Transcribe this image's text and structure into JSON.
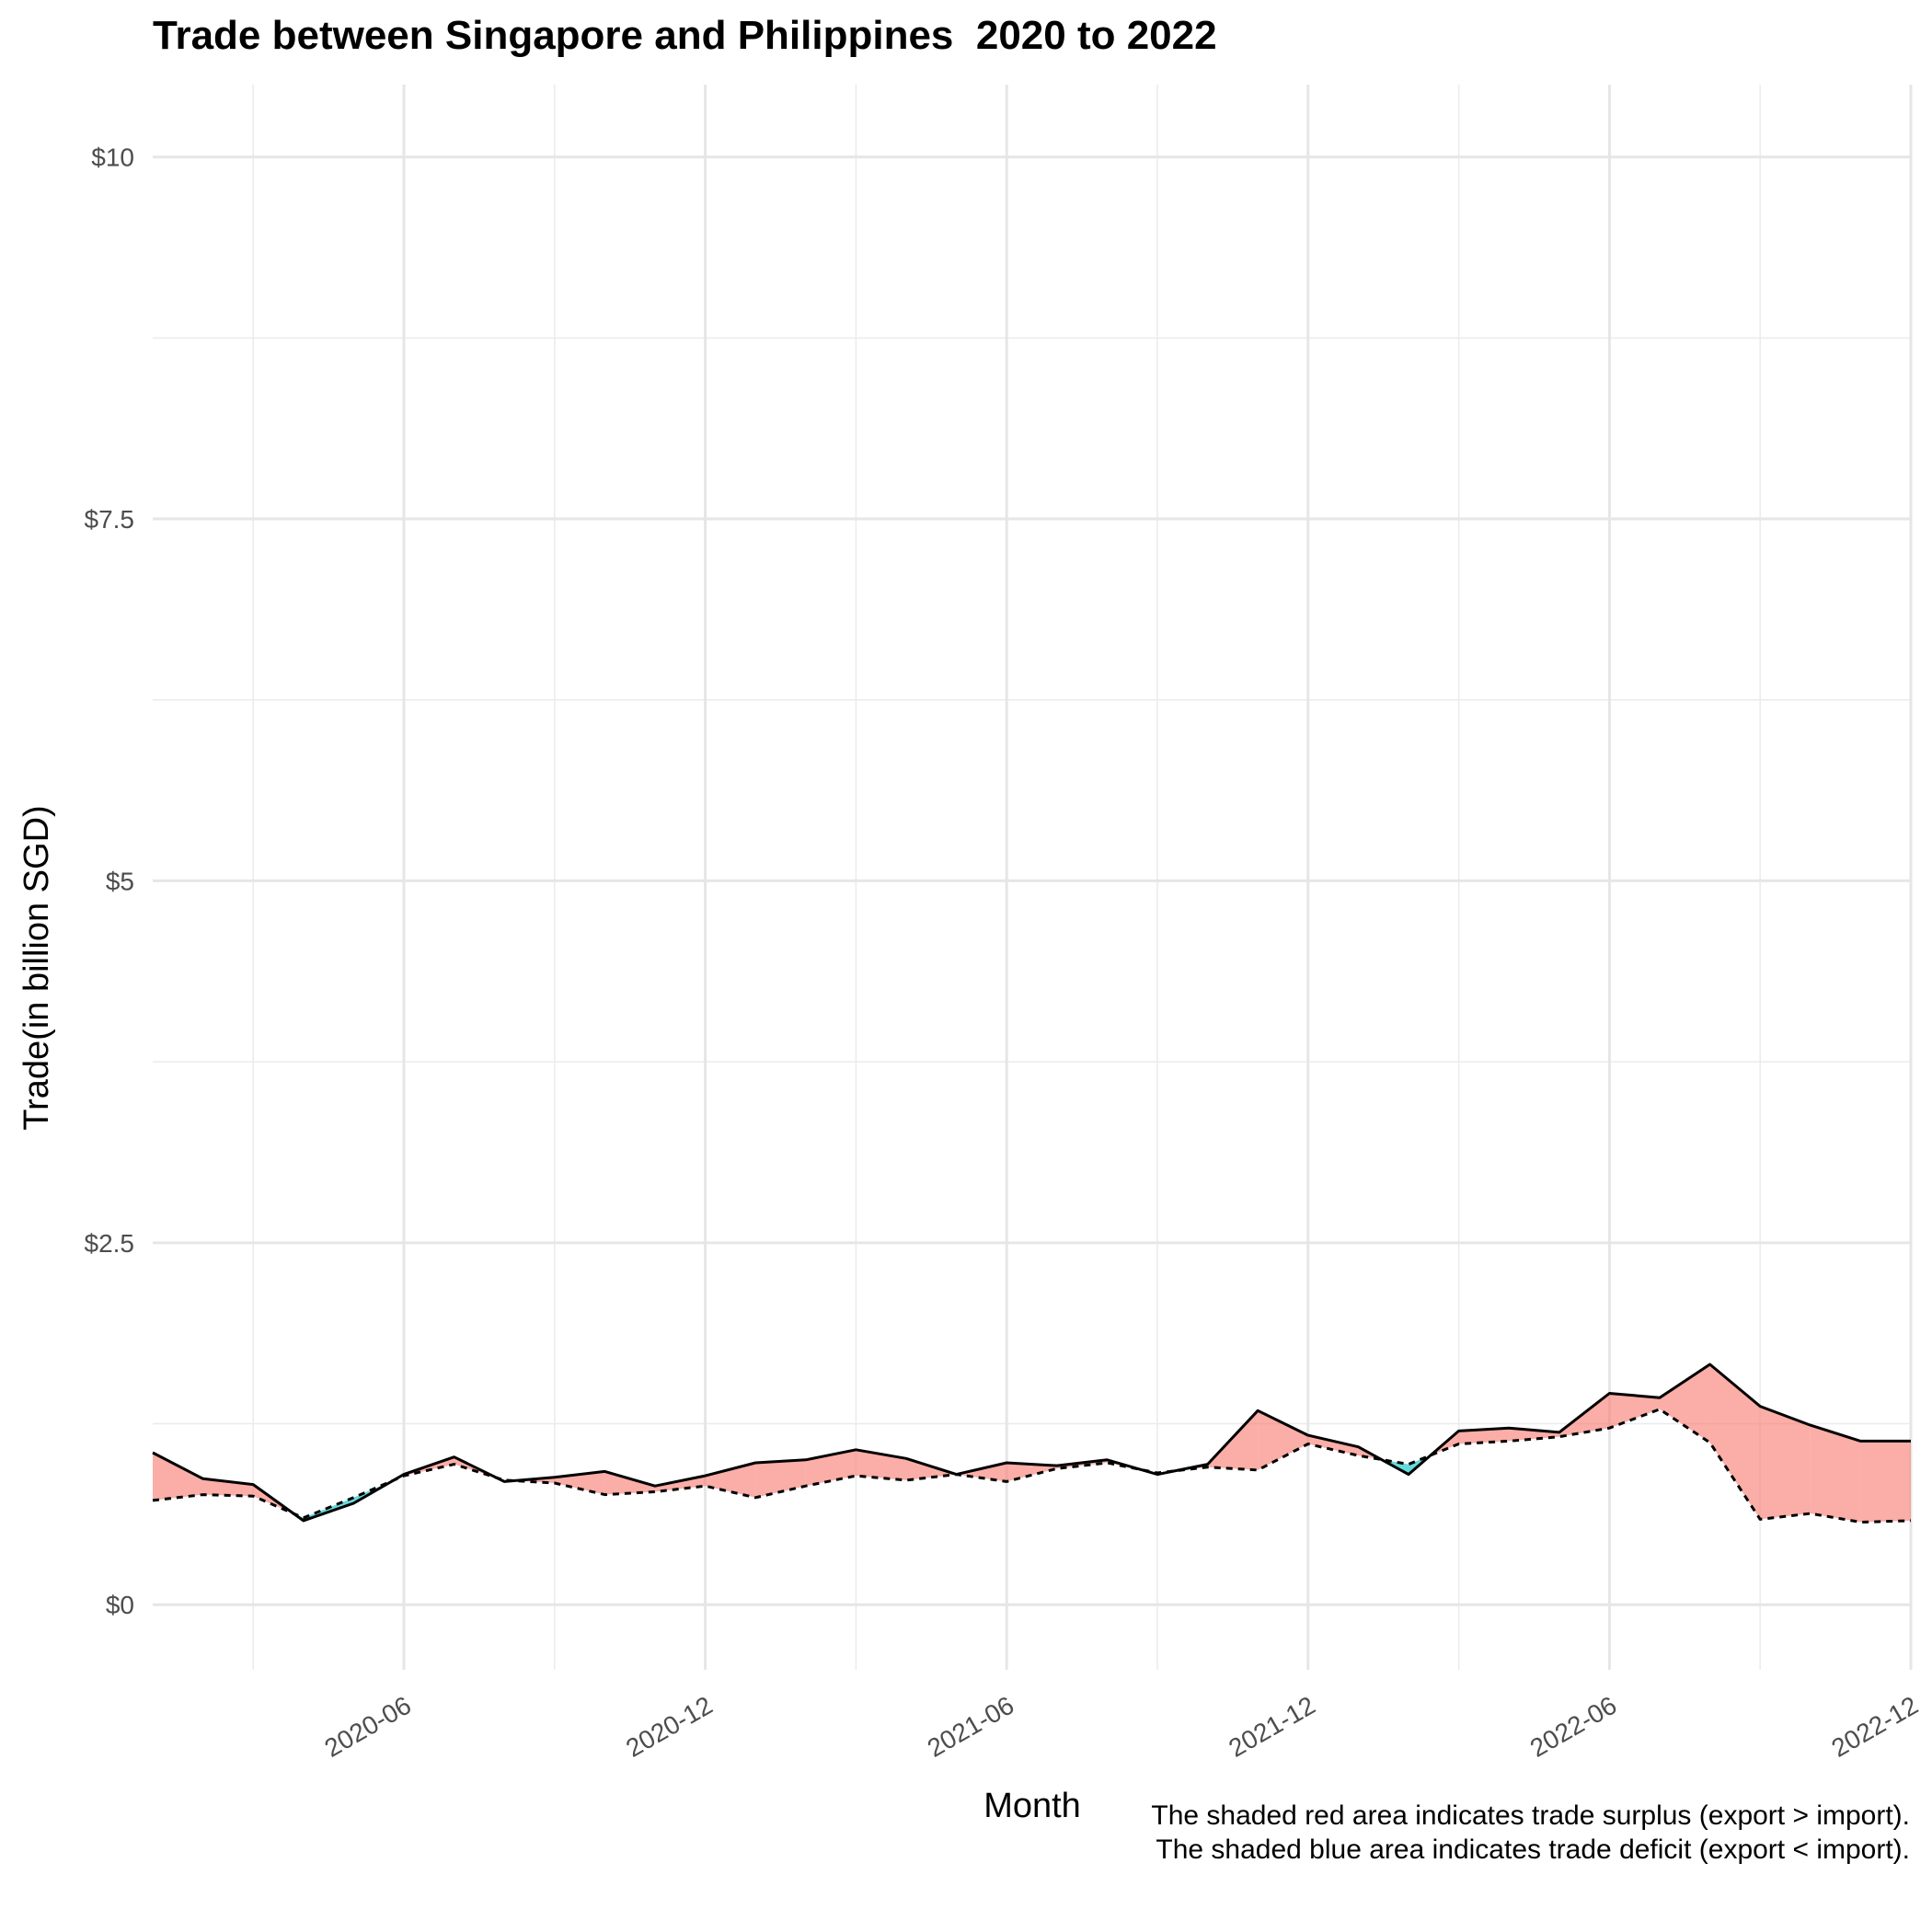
{
  "chart_data": {
    "type": "area",
    "title": "Trade between Singapore and Philippines  2020 to 2022",
    "xlabel": "Month",
    "ylabel": "Trade(in billion SGD)",
    "ylim": [
      -0.45,
      10.5
    ],
    "yticks": [
      0,
      2.5,
      5,
      7.5,
      10
    ],
    "ytick_labels": [
      "$0",
      "$2.5",
      "$5",
      "$7.5",
      "$10"
    ],
    "xticks": [
      "2020-06",
      "2020-12",
      "2021-06",
      "2021-12",
      "2022-06",
      "2022-12"
    ],
    "grid": true,
    "x": [
      "2020-01",
      "2020-02",
      "2020-03",
      "2020-04",
      "2020-05",
      "2020-06",
      "2020-07",
      "2020-08",
      "2020-09",
      "2020-10",
      "2020-11",
      "2020-12",
      "2021-01",
      "2021-02",
      "2021-03",
      "2021-04",
      "2021-05",
      "2021-06",
      "2021-07",
      "2021-08",
      "2021-09",
      "2021-10",
      "2021-11",
      "2021-12",
      "2022-01",
      "2022-02",
      "2022-03",
      "2022-04",
      "2022-05",
      "2022-06",
      "2022-07",
      "2022-08",
      "2022-09",
      "2022-10",
      "2022-11",
      "2022-12"
    ],
    "series": [
      {
        "line_style": "solid",
        "color": "#000000",
        "values": [
          1.05,
          0.87,
          0.83,
          0.58,
          0.7,
          0.9,
          1.02,
          0.85,
          0.88,
          0.92,
          0.82,
          0.89,
          0.98,
          1.0,
          1.07,
          1.01,
          0.9,
          0.98,
          0.96,
          1.0,
          0.9,
          0.97,
          1.34,
          1.17,
          1.09,
          0.9,
          1.2,
          1.22,
          1.19,
          1.46,
          1.43,
          1.66,
          1.37,
          1.24,
          1.13,
          1.13
        ]
      },
      {
        "line_style": "dotted",
        "color": "#000000",
        "values": [
          0.72,
          0.76,
          0.75,
          0.6,
          0.74,
          0.89,
          0.97,
          0.86,
          0.84,
          0.76,
          0.78,
          0.82,
          0.74,
          0.82,
          0.89,
          0.86,
          0.9,
          0.85,
          0.94,
          0.98,
          0.91,
          0.95,
          0.93,
          1.11,
          1.03,
          0.97,
          1.11,
          1.13,
          1.16,
          1.22,
          1.35,
          1.12,
          0.59,
          0.63,
          0.57,
          0.58
        ]
      }
    ],
    "fill_surplus": "#f8766d",
    "fill_deficit": "#00bfc4"
  },
  "caption": {
    "line1": "The shaded red area indicates trade surplus (export > import).",
    "line2": "The shaded blue area indicates trade deficit (export < import)."
  }
}
